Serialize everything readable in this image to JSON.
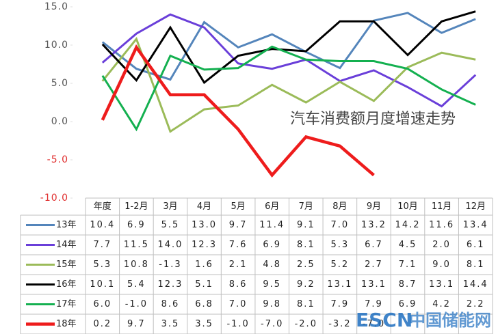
{
  "chart_data": {
    "type": "line",
    "title": "汽车消费额月度增速走势",
    "categories": [
      "年度",
      "1-2月",
      "3月",
      "4月",
      "5月",
      "6月",
      "7月",
      "8月",
      "9月",
      "10月",
      "11月",
      "12月"
    ],
    "ylim": [
      -10,
      15
    ],
    "yticks": [
      {
        "value": -10,
        "label": "-10.0"
      },
      {
        "value": -5,
        "label": "-5.0"
      },
      {
        "value": 0,
        "label": "0.0"
      },
      {
        "value": 5,
        "label": "5.0"
      },
      {
        "value": 10,
        "label": "10.0"
      },
      {
        "value": 15,
        "label": "15.0"
      }
    ],
    "tick_color": "#555555",
    "negative_tick_color": "#e03030",
    "series": [
      {
        "name": "13年",
        "color": "#5485bb",
        "line_width": 3,
        "values": [
          10.4,
          6.9,
          5.5,
          13.0,
          9.7,
          11.4,
          9.1,
          7.0,
          13.2,
          14.2,
          11.6,
          13.4
        ],
        "value_labels": [
          "10.4",
          "6.9",
          "5.5",
          "13.0",
          "9.7",
          "11.4",
          "9.1",
          "7.0",
          "13.2",
          "14.2",
          "11.6",
          "13.4"
        ]
      },
      {
        "name": "14年",
        "color": "#6a3fd9",
        "line_width": 3,
        "values": [
          7.7,
          11.5,
          14.0,
          12.3,
          7.6,
          6.9,
          8.1,
          5.3,
          6.7,
          4.5,
          2.0,
          6.1
        ],
        "value_labels": [
          "7.7",
          "11.5",
          "14.0",
          "12.3",
          "7.6",
          "6.9",
          "8.1",
          "5.3",
          "6.7",
          "4.5",
          "2.0",
          "6.1"
        ]
      },
      {
        "name": "15年",
        "color": "#9bbb59",
        "line_width": 3,
        "values": [
          5.3,
          10.8,
          -1.3,
          1.6,
          2.1,
          4.8,
          2.5,
          5.2,
          2.7,
          7.1,
          9.0,
          8.1
        ],
        "value_labels": [
          "5.3",
          "10.8",
          "-1.3",
          "1.6",
          "2.1",
          "4.8",
          "2.5",
          "5.2",
          "2.7",
          "7.1",
          "9.0",
          "8.1"
        ]
      },
      {
        "name": "16年",
        "color": "#000000",
        "line_width": 3,
        "values": [
          10.1,
          5.4,
          12.3,
          5.1,
          8.6,
          9.5,
          9.2,
          13.1,
          13.1,
          8.7,
          13.1,
          14.4
        ],
        "value_labels": [
          "10.1",
          "5.4",
          "12.3",
          "5.1",
          "8.6",
          "9.5",
          "9.2",
          "13.1",
          "13.1",
          "8.7",
          "13.1",
          "14.4"
        ]
      },
      {
        "name": "17年",
        "color": "#14b050",
        "line_width": 3,
        "values": [
          6.0,
          -1.0,
          8.6,
          6.8,
          7.0,
          9.8,
          8.1,
          7.9,
          7.9,
          6.9,
          4.2,
          2.2
        ],
        "value_labels": [
          "6.0",
          "-1.0",
          "8.6",
          "6.8",
          "7.0",
          "9.8",
          "8.1",
          "7.9",
          "7.9",
          "6.9",
          "4.2",
          "2.2"
        ]
      },
      {
        "name": "18年",
        "color": "#ee1c1c",
        "line_width": 4.5,
        "values": [
          0.2,
          9.7,
          3.5,
          3.5,
          -1.0,
          -7.0,
          -2.0,
          -3.2,
          -7.0,
          null,
          null,
          null
        ],
        "value_labels": [
          "0.2",
          "9.7",
          "3.5",
          "3.5",
          "-1.0",
          "-7.0",
          "-2.0",
          "-3.2",
          "-7.0",
          null,
          null,
          null
        ]
      }
    ],
    "watermark": [
      "ESCN",
      "中国储能网"
    ]
  }
}
